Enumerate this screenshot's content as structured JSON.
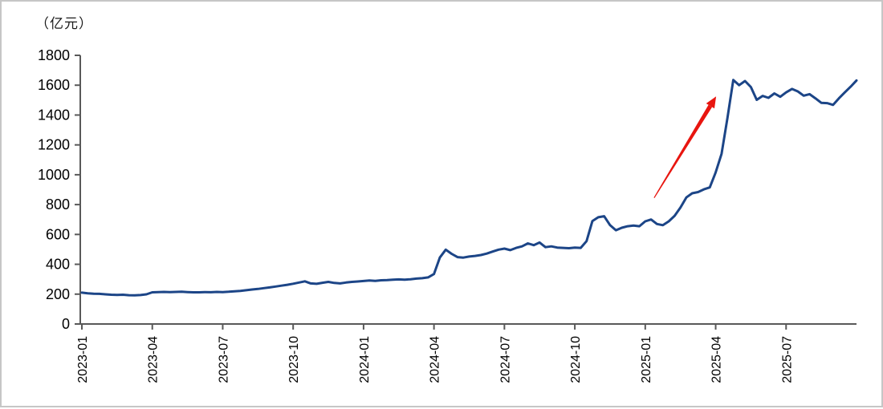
{
  "chart_data": {
    "type": "line",
    "title": "",
    "unit_label": "（亿元）",
    "xlabel": "",
    "ylabel": "（亿元）",
    "ylim": [
      0,
      1800
    ],
    "y_ticks": [
      0,
      200,
      400,
      600,
      800,
      1000,
      1200,
      1400,
      1600,
      1800
    ],
    "x_tick_labels": [
      "2023-01",
      "2023-04",
      "2023-07",
      "2023-10",
      "2024-01",
      "2024-04",
      "2024-07",
      "2024-10",
      "2025-01",
      "2025-04",
      "2025-07"
    ],
    "x_tick_month_index": [
      0,
      3,
      6,
      9,
      12,
      15,
      18,
      21,
      24,
      27,
      30
    ],
    "x_start_month": "2023-01",
    "x_end_month": "2025-09",
    "points_per_month": 4,
    "grid": false,
    "legend_position": "none",
    "axis_color": "#595959",
    "series": [
      {
        "label": "",
        "color": "#1c4587",
        "values": [
          210,
          206,
          203,
          202,
          199,
          196,
          195,
          196,
          193,
          192,
          194,
          199,
          212,
          214,
          215,
          214,
          215,
          216,
          214,
          212,
          212,
          214,
          213,
          215,
          214,
          216,
          219,
          222,
          226,
          231,
          235,
          240,
          245,
          251,
          257,
          263,
          270,
          278,
          286,
          272,
          269,
          276,
          282,
          275,
          272,
          278,
          282,
          285,
          288,
          292,
          289,
          293,
          294,
          297,
          299,
          297,
          300,
          304,
          307,
          312,
          335,
          445,
          498,
          470,
          448,
          445,
          452,
          456,
          462,
          472,
          485,
          498,
          505,
          495,
          510,
          520,
          540,
          528,
          546,
          515,
          520,
          512,
          510,
          508,
          512,
          510,
          555,
          690,
          715,
          722,
          662,
          628,
          645,
          655,
          660,
          655,
          688,
          700,
          670,
          662,
          688,
          725,
          780,
          848,
          876,
          884,
          902,
          915,
          1015,
          1140,
          1380,
          1635,
          1600,
          1628,
          1588,
          1502,
          1528,
          1515,
          1545,
          1522,
          1552,
          1575,
          1558,
          1530,
          1540,
          1512,
          1482,
          1480,
          1468,
          1512,
          1552,
          1590,
          1632
        ]
      }
    ],
    "annotation_arrow": {
      "color": "#e8150f",
      "from": {
        "t_months": 24.38,
        "value": 845
      },
      "to": {
        "t_months": 27.02,
        "value": 1525
      }
    }
  }
}
